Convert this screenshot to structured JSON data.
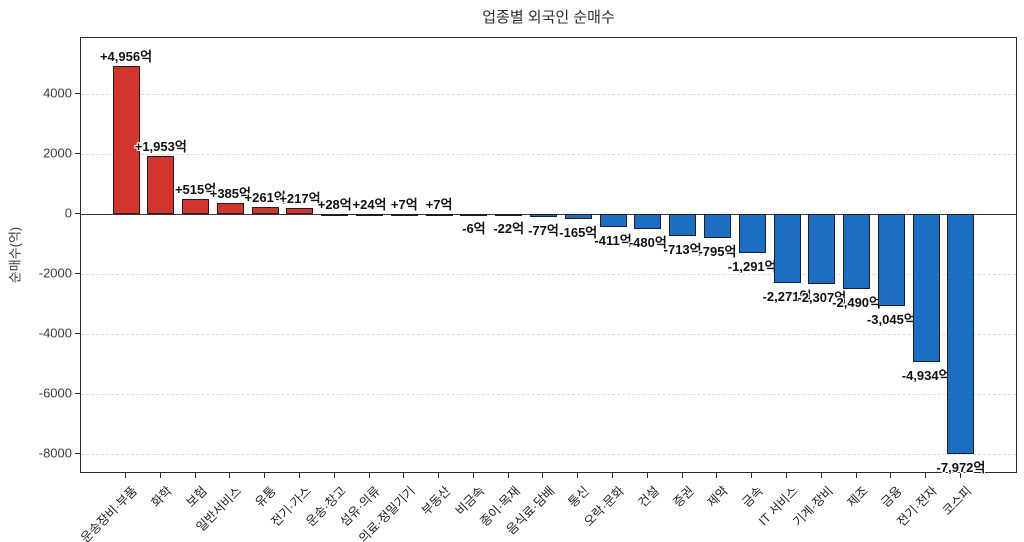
{
  "chart_data": {
    "type": "bar",
    "title": "업종별 외국인 순매수",
    "xlabel": "",
    "ylabel": "순매수(억)",
    "categories": [
      "운송장비·부품",
      "화학",
      "보험",
      "일반서비스",
      "유통",
      "전기·가스",
      "운송·창고",
      "섬유·의류",
      "의료·정밀기기",
      "부동산",
      "비금속",
      "종이·목재",
      "음식료·담배",
      "통신",
      "오락·문화",
      "건설",
      "증권",
      "제약",
      "금속",
      "IT 서비스",
      "기계·장비",
      "제조",
      "금융",
      "전기·전자",
      "코스피"
    ],
    "values": [
      4956,
      1953,
      515,
      385,
      261,
      217,
      28,
      24,
      7,
      7,
      -6,
      -22,
      -77,
      -165,
      -411,
      -480,
      -713,
      -795,
      -1291,
      -2271,
      -2307,
      -2490,
      -3045,
      -4934,
      -7972
    ],
    "bar_labels": [
      "+4,956억",
      "+1,953억",
      "+515억",
      "+385억",
      "+261억",
      "+217억",
      "+28억",
      "+24억",
      "+7억",
      "+7억",
      "-6억",
      "-22억",
      "-77억",
      "-165억",
      "-411억",
      "-480억",
      "-713억",
      "-795억",
      "-1,291억",
      "-2,271억",
      "-2,307억",
      "-2,490억",
      "-3,045억",
      "-4,934억",
      "-7,972억"
    ],
    "yticks": [
      4000,
      2000,
      0,
      -2000,
      -4000,
      -6000,
      -8000
    ],
    "ytick_labels": [
      "4000",
      "2000",
      "0",
      "-2000",
      "-4000",
      "-6000",
      "-8000"
    ],
    "ylim": [
      -8650,
      5880
    ],
    "grid": "horizontal-dashed",
    "legend": "none",
    "colors": {
      "positive_bar": "#d2342e",
      "negative_bar": "#1b6ec2",
      "bar_edge": "#1f1f1f",
      "gridline": "#dcdcdc",
      "axis": "#2b2b2b",
      "zero_line": "#3a3a3a",
      "tick_label": "#3c3c3c",
      "value_label": "#111111",
      "background": "#ffffff"
    }
  }
}
